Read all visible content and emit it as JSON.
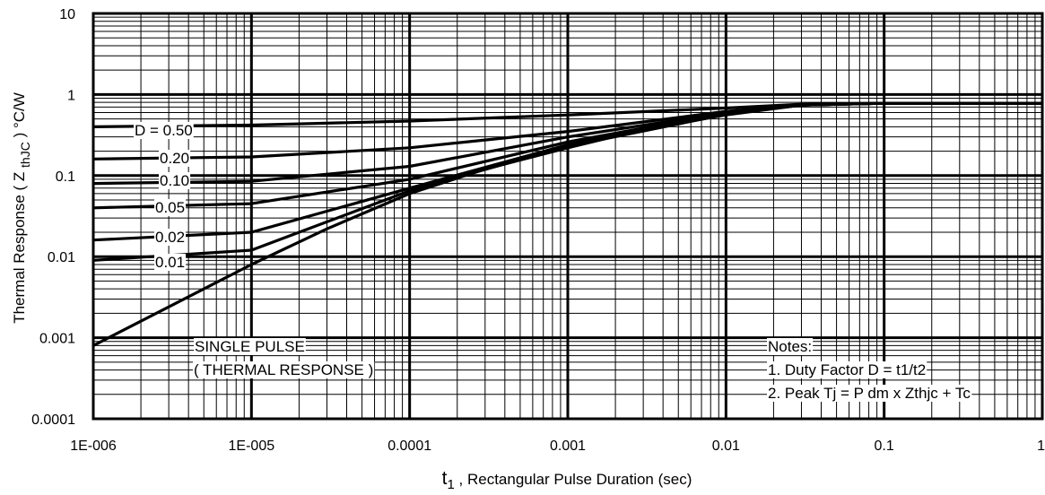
{
  "chart_data": {
    "type": "line",
    "title": "",
    "xlabel_main": "t",
    "xlabel_sub": "1",
    "xlabel_rest": " , Rectangular Pulse Duration (sec)",
    "ylabel_main": "Thermal Response ( Z ",
    "ylabel_sub": "thJC",
    "ylabel_rest": " ) °C/W",
    "x_scale": "log",
    "y_scale": "log",
    "xlim": [
      1e-06,
      1
    ],
    "ylim": [
      0.0001,
      10
    ],
    "grid": true,
    "x_tick_labels": [
      "1E-006",
      "1E-005",
      "0.0001",
      "0.001",
      "0.01",
      "0.1",
      "1"
    ],
    "y_tick_labels": [
      "10",
      "1",
      "0.1",
      "0.01",
      "0.001",
      "0.0001"
    ],
    "series": [
      {
        "name": "D = 0.50",
        "x": [
          1e-06,
          1e-05,
          0.0001,
          0.001,
          0.01,
          0.03,
          0.1,
          1
        ],
        "y": [
          0.4,
          0.42,
          0.47,
          0.56,
          0.68,
          0.76,
          0.78,
          0.78
        ]
      },
      {
        "name": "0.20",
        "x": [
          1e-06,
          1e-05,
          0.0001,
          0.001,
          0.01,
          0.03,
          0.1,
          1
        ],
        "y": [
          0.16,
          0.17,
          0.22,
          0.35,
          0.62,
          0.75,
          0.78,
          0.78
        ]
      },
      {
        "name": "0.10",
        "x": [
          1e-06,
          1e-05,
          0.0001,
          0.001,
          0.01,
          0.03,
          0.1,
          1
        ],
        "y": [
          0.08,
          0.085,
          0.13,
          0.3,
          0.6,
          0.74,
          0.78,
          0.78
        ]
      },
      {
        "name": "0.05",
        "x": [
          1e-06,
          1e-05,
          0.0001,
          0.001,
          0.01,
          0.03,
          0.1,
          1
        ],
        "y": [
          0.04,
          0.045,
          0.09,
          0.26,
          0.59,
          0.74,
          0.78,
          0.78
        ]
      },
      {
        "name": "0.02",
        "x": [
          1e-06,
          1e-05,
          0.0001,
          0.001,
          0.01,
          0.03,
          0.1,
          1
        ],
        "y": [
          0.016,
          0.02,
          0.07,
          0.24,
          0.58,
          0.74,
          0.78,
          0.78
        ]
      },
      {
        "name": "0.01",
        "x": [
          1e-06,
          1e-05,
          0.0001,
          0.001,
          0.01,
          0.03,
          0.1,
          1
        ],
        "y": [
          0.009,
          0.012,
          0.065,
          0.23,
          0.57,
          0.74,
          0.78,
          0.78
        ]
      },
      {
        "name": "SINGLE PULSE",
        "x": [
          1e-06,
          1e-05,
          3e-05,
          0.0001,
          0.0003,
          0.001,
          0.003,
          0.01,
          0.03,
          0.1,
          1
        ],
        "y": [
          0.0008,
          0.008,
          0.022,
          0.06,
          0.12,
          0.22,
          0.37,
          0.56,
          0.74,
          0.78,
          0.78
        ]
      }
    ],
    "curve_labels": [
      {
        "text": "D = 0.50",
        "series": 0
      },
      {
        "text": "0.20",
        "series": 1
      },
      {
        "text": "0.10",
        "series": 2
      },
      {
        "text": "0.05",
        "series": 3
      },
      {
        "text": "0.02",
        "series": 4
      },
      {
        "text": "0.01",
        "series": 5
      }
    ],
    "single_pulse_label": [
      "SINGLE PULSE",
      "( THERMAL RESPONSE )"
    ],
    "notes": [
      "Notes:",
      "1. Duty Factor D = t1/t2",
      "2. Peak Tj = P dm x Zthjc + Tc"
    ]
  }
}
